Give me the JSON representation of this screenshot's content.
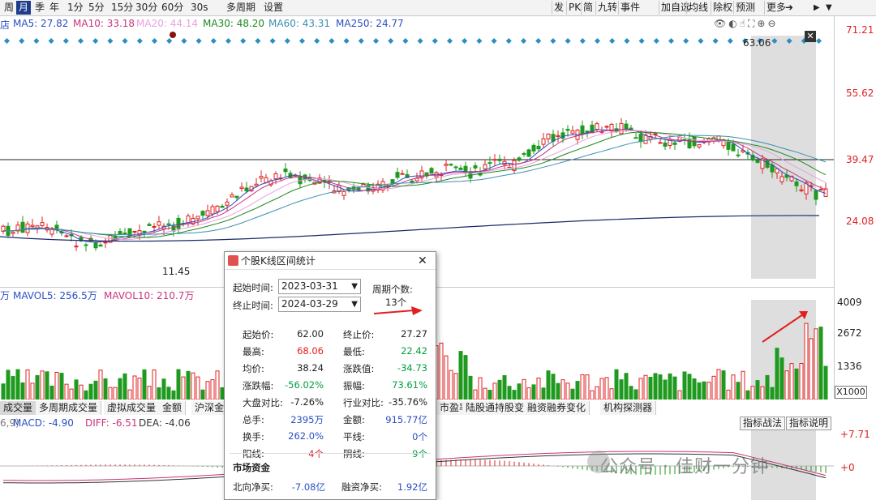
{
  "toolbar": {
    "periods": [
      "周",
      "月",
      "季",
      "年",
      "1分",
      "5分",
      "15分",
      "30分",
      "60分",
      "30s"
    ],
    "active_period": "月",
    "multi_period": "多周期",
    "settings": "设置",
    "right_buttons": [
      "发",
      "PK",
      "简",
      "九转",
      "事件",
      "加自选",
      "均线",
      "除权",
      "预测",
      "更多"
    ]
  },
  "ma_line": {
    "prefix": "店",
    "ma5": "MA5: 27.82",
    "ma10": "MA10: 33.18",
    "ma20": "MA20: 44.14",
    "ma30": "MA30: 48.20",
    "ma60": "MA60: 43.31",
    "ma250": "MA250: 24.77",
    "colors": {
      "ma5": "#2a4fc4",
      "ma10": "#c8347a",
      "ma20": "#e8a0e0",
      "ma30": "#1e8a1e",
      "ma60": "#3a8fb0",
      "ma250": "#2a4fc4"
    }
  },
  "price_axis": {
    "high": "71.21",
    "mid1": "55.62",
    "mid2": "39.47",
    "low": "24.08",
    "line": "39.47"
  },
  "price_annotations": {
    "max": "63.06",
    "min": "11.45"
  },
  "nine_turn_labels": [
    "7",
    "8",
    "9",
    "6",
    "8",
    "5",
    "7",
    "3",
    "2",
    "4",
    "1",
    "34",
    "2",
    "6",
    "8",
    "9",
    "6",
    "7",
    "2",
    "3",
    "4",
    "5",
    "6",
    "7",
    "1",
    "2",
    "3",
    "4",
    "5",
    "1",
    "2",
    "34",
    "56",
    "78",
    "9",
    "45",
    "6789",
    "1234567",
    "89123",
    "4567",
    "89"
  ],
  "cycle_marks": [
    "q",
    "q",
    "q",
    "q",
    "q",
    "L",
    "q",
    "q",
    "L",
    "q",
    "q"
  ],
  "volume": {
    "label_prefix": "万",
    "mavol5": "MAVOL5: 256.5万",
    "mavol10": "MAVOL10: 210.7万",
    "axis": [
      "4009",
      "2672",
      "1336"
    ],
    "unit": "X1000"
  },
  "tabs": [
    "成交量",
    "多周期成交量",
    "虚拟成交量",
    "金额",
    "沪深金",
    "交量",
    "市盈率(ttm)",
    "陆股通持股变化",
    "融资融券变化",
    "机构探测器"
  ],
  "macd": {
    "prefix": "6,9)",
    "macd": "MACD: -4.90",
    "diff": "DIFF: -6.51",
    "dea": "DEA: -4.06",
    "axis_top": "+7.71",
    "axis_zero": "+0",
    "btn_strategy": "指标战法",
    "btn_help": "指标说明"
  },
  "watermark": "公众号 · 佳财一分钟",
  "dialog": {
    "title": "个股K线区间统计",
    "start_label": "起始时间:",
    "start_value": "2023-03-31",
    "end_label": "终止时间:",
    "end_value": "2024-03-29",
    "period_count_label": "周期个数:",
    "period_count_value": "13个",
    "stats": [
      {
        "l1": "起始价:",
        "v1": "62.00",
        "c1": "",
        "l2": "终止价:",
        "v2": "27.27",
        "c2": ""
      },
      {
        "l1": "最高:",
        "v1": "68.06",
        "c1": "red",
        "l2": "最低:",
        "v2": "22.42",
        "c2": "green"
      },
      {
        "l1": "均价:",
        "v1": "38.24",
        "c1": "",
        "l2": "涨跌值:",
        "v2": "-34.73",
        "c2": "green"
      },
      {
        "l1": "涨跌幅:",
        "v1": "-56.02%",
        "c1": "green",
        "l2": "振幅:",
        "v2": "73.61%",
        "c2": "green"
      },
      {
        "l1": "大盘对比:",
        "v1": "-7.26%",
        "c1": "",
        "l2": "行业对比:",
        "v2": "-35.76%",
        "c2": ""
      },
      {
        "l1": "总手:",
        "v1": "2395万",
        "c1": "blue",
        "l2": "金额:",
        "v2": "915.77亿",
        "c2": "blue"
      },
      {
        "l1": "换手:",
        "v1": "262.0%",
        "c1": "blue",
        "l2": "平线:",
        "v2": "0个",
        "c2": "blue"
      },
      {
        "l1": "阳线:",
        "v1": "4个",
        "c1": "red",
        "l2": "阴线:",
        "v2": "9个",
        "c2": "green"
      }
    ],
    "fund_title": "市场资金",
    "north_label": "北向净买:",
    "north_value": "-7.08亿",
    "margin_label": "融资净买:",
    "margin_value": "1.92亿"
  }
}
